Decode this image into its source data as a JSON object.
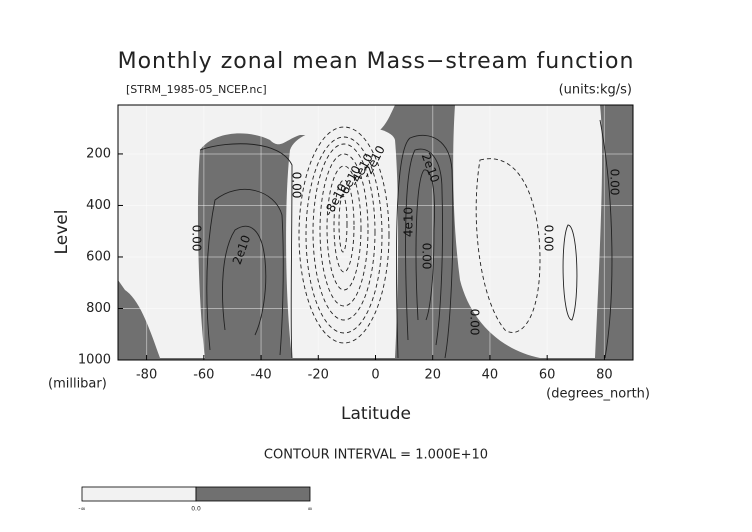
{
  "chart_data": {
    "type": "contour",
    "title": "Monthly zonal mean Mass−stream function",
    "subtitle": "[STRM_1985-05_NCEP.nc]",
    "units_label": "(units:kg/s)",
    "x_label": "Latitude",
    "x_unit": "(degrees_north)",
    "y_label": "Level",
    "y_unit": "(millibar)",
    "xlim": [
      -90,
      90
    ],
    "ylim": [
      1000,
      10
    ],
    "xticks": [
      -80,
      -60,
      -40,
      -20,
      0,
      20,
      40,
      60,
      80
    ],
    "yticks": [
      200,
      400,
      600,
      800,
      1000
    ],
    "grid": true,
    "contour_interval_text": "CONTOUR INTERVAL = 1.000E+10",
    "contour_labels": [
      "0.00",
      "2e10",
      "0.00",
      "-8e10",
      "-6e10",
      "-4e10",
      "-2e10",
      "4e10",
      "0.00",
      "2e10",
      "0.00",
      "0.00",
      "0.00"
    ],
    "colorbar": {
      "colors": [
        "#f2f2f2",
        "#707070"
      ],
      "labels": [
        "-∞",
        "0.0",
        "∞"
      ]
    }
  }
}
